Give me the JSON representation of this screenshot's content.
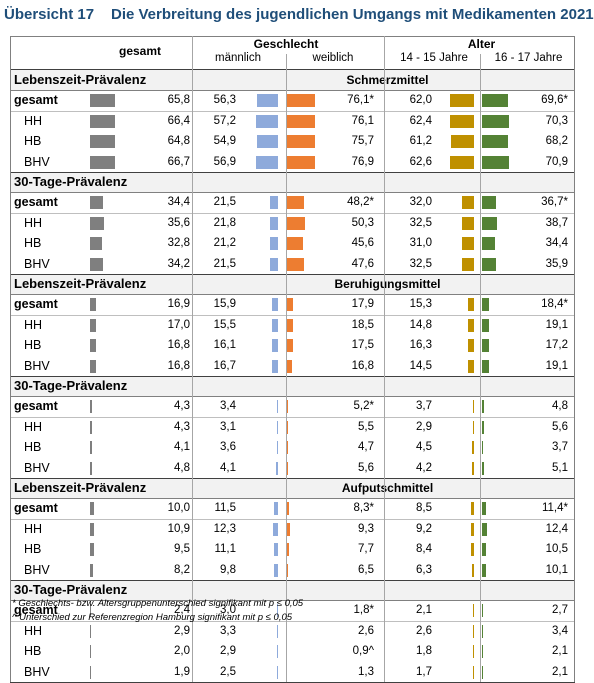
{
  "title": {
    "label": "Übersicht 17",
    "text": "Die Verbreitung des jugendlichen Umgangs mit Medikamenten 2021"
  },
  "headers": {
    "gesamt": "gesamt",
    "geschlecht": "Geschlecht",
    "maennlich": "männlich",
    "weiblich": "weiblich",
    "alter": "Alter",
    "age1": "14 - 15 Jahre",
    "age2": "16 - 17 Jahre"
  },
  "colors": {
    "gesamt": "#7f7f7f",
    "maennlich": "#8eaadb",
    "weiblich": "#ed7d31",
    "age1": "#bf9000",
    "age2": "#548235"
  },
  "footnotes": [
    "* Geschlechts- bzw. Altersgruppenunterschied signifikant mit p ≤ 0,05",
    "^ Unterschied zur Referenzregion Hamburg signifikant mit p ≤ 0,05"
  ],
  "chart_data": {
    "type": "table",
    "title": "Die Verbreitung des jugendlichen Umgangs mit Medikamenten 2021",
    "columns": [
      "gesamt",
      "männlich",
      "weiblich",
      "14 - 15 Jahre",
      "16 - 17 Jahre"
    ],
    "blocks": [
      {
        "medication": "Schmerzmittel",
        "sections": [
          {
            "title": "Lebenszeit-Prävalenz",
            "rows": [
              {
                "label": "gesamt",
                "values": [
                  "65,8",
                  "56,3",
                  "76,1*",
                  "62,0",
                  "69,6*"
                ],
                "num": [
                  65.8,
                  56.3,
                  76.1,
                  62.0,
                  69.6
                ]
              },
              {
                "label": "HH",
                "values": [
                  "66,4",
                  "57,2",
                  "76,1",
                  "62,4",
                  "70,3"
                ],
                "num": [
                  66.4,
                  57.2,
                  76.1,
                  62.4,
                  70.3
                ]
              },
              {
                "label": "HB",
                "values": [
                  "64,8",
                  "54,9",
                  "75,7",
                  "61,2",
                  "68,2"
                ],
                "num": [
                  64.8,
                  54.9,
                  75.7,
                  61.2,
                  68.2
                ]
              },
              {
                "label": "BHV",
                "values": [
                  "66,7",
                  "56,9",
                  "76,9",
                  "62,6",
                  "70,9"
                ],
                "num": [
                  66.7,
                  56.9,
                  76.9,
                  62.6,
                  70.9
                ]
              }
            ]
          },
          {
            "title": "30-Tage-Prävalenz",
            "rows": [
              {
                "label": "gesamt",
                "values": [
                  "34,4",
                  "21,5",
                  "48,2*",
                  "32,0",
                  "36,7*"
                ],
                "num": [
                  34.4,
                  21.5,
                  48.2,
                  32.0,
                  36.7
                ]
              },
              {
                "label": "HH",
                "values": [
                  "35,6",
                  "21,8",
                  "50,3",
                  "32,5",
                  "38,7"
                ],
                "num": [
                  35.6,
                  21.8,
                  50.3,
                  32.5,
                  38.7
                ]
              },
              {
                "label": "HB",
                "values": [
                  "32,8",
                  "21,2",
                  "45,6",
                  "31,0",
                  "34,4"
                ],
                "num": [
                  32.8,
                  21.2,
                  45.6,
                  31.0,
                  34.4
                ]
              },
              {
                "label": "BHV",
                "values": [
                  "34,2",
                  "21,5",
                  "47,6",
                  "32,5",
                  "35,9"
                ],
                "num": [
                  34.2,
                  21.5,
                  47.6,
                  32.5,
                  35.9
                ]
              }
            ]
          }
        ]
      },
      {
        "medication": "Beruhigungsmittel",
        "sections": [
          {
            "title": "Lebenszeit-Prävalenz",
            "rows": [
              {
                "label": "gesamt",
                "values": [
                  "16,9",
                  "15,9",
                  "17,9",
                  "15,3",
                  "18,4*"
                ],
                "num": [
                  16.9,
                  15.9,
                  17.9,
                  15.3,
                  18.4
                ]
              },
              {
                "label": "HH",
                "values": [
                  "17,0",
                  "15,5",
                  "18,5",
                  "14,8",
                  "19,1"
                ],
                "num": [
                  17.0,
                  15.5,
                  18.5,
                  14.8,
                  19.1
                ]
              },
              {
                "label": "HB",
                "values": [
                  "16,8",
                  "16,1",
                  "17,5",
                  "16,3",
                  "17,2"
                ],
                "num": [
                  16.8,
                  16.1,
                  17.5,
                  16.3,
                  17.2
                ]
              },
              {
                "label": "BHV",
                "values": [
                  "16,8",
                  "16,7",
                  "16,8",
                  "14,5",
                  "19,1"
                ],
                "num": [
                  16.8,
                  16.7,
                  16.8,
                  14.5,
                  19.1
                ]
              }
            ]
          },
          {
            "title": "30-Tage-Prävalenz",
            "rows": [
              {
                "label": "gesamt",
                "values": [
                  "4,3",
                  "3,4",
                  "5,2*",
                  "3,7",
                  "4,8"
                ],
                "num": [
                  4.3,
                  3.4,
                  5.2,
                  3.7,
                  4.8
                ]
              },
              {
                "label": "HH",
                "values": [
                  "4,3",
                  "3,1",
                  "5,5",
                  "2,9",
                  "5,6"
                ],
                "num": [
                  4.3,
                  3.1,
                  5.5,
                  2.9,
                  5.6
                ]
              },
              {
                "label": "HB",
                "values": [
                  "4,1",
                  "3,6",
                  "4,7",
                  "4,5",
                  "3,7"
                ],
                "num": [
                  4.1,
                  3.6,
                  4.7,
                  4.5,
                  3.7
                ]
              },
              {
                "label": "BHV",
                "values": [
                  "4,8",
                  "4,1",
                  "5,6",
                  "4,2",
                  "5,1"
                ],
                "num": [
                  4.8,
                  4.1,
                  5.6,
                  4.2,
                  5.1
                ]
              }
            ]
          }
        ]
      },
      {
        "medication": "Aufputschmittel",
        "sections": [
          {
            "title": "Lebenszeit-Prävalenz",
            "rows": [
              {
                "label": "gesamt",
                "values": [
                  "10,0",
                  "11,5",
                  "8,3*",
                  "8,5",
                  "11,4*"
                ],
                "num": [
                  10.0,
                  11.5,
                  8.3,
                  8.5,
                  11.4
                ]
              },
              {
                "label": "HH",
                "values": [
                  "10,9",
                  "12,3",
                  "9,3",
                  "9,2",
                  "12,4"
                ],
                "num": [
                  10.9,
                  12.3,
                  9.3,
                  9.2,
                  12.4
                ]
              },
              {
                "label": "HB",
                "values": [
                  "9,5",
                  "11,1",
                  "7,7",
                  "8,4",
                  "10,5"
                ],
                "num": [
                  9.5,
                  11.1,
                  7.7,
                  8.4,
                  10.5
                ]
              },
              {
                "label": "BHV",
                "values": [
                  "8,2",
                  "9,8",
                  "6,5",
                  "6,3",
                  "10,1"
                ],
                "num": [
                  8.2,
                  9.8,
                  6.5,
                  6.3,
                  10.1
                ]
              }
            ]
          },
          {
            "title": "30-Tage-Prävalenz",
            "rows": [
              {
                "label": "gesamt",
                "values": [
                  "2,4",
                  "3,0",
                  "1,8*",
                  "2,1",
                  "2,7"
                ],
                "num": [
                  2.4,
                  3.0,
                  1.8,
                  2.1,
                  2.7
                ]
              },
              {
                "label": "HH",
                "values": [
                  "2,9",
                  "3,3",
                  "2,6",
                  "2,6",
                  "3,4"
                ],
                "num": [
                  2.9,
                  3.3,
                  2.6,
                  2.6,
                  3.4
                ]
              },
              {
                "label": "HB",
                "values": [
                  "2,0",
                  "2,9",
                  "0,9^",
                  "1,8",
                  "2,1"
                ],
                "num": [
                  2.0,
                  2.9,
                  0.9,
                  1.8,
                  2.1
                ]
              },
              {
                "label": "BHV",
                "values": [
                  "1,9",
                  "2,5",
                  "1,3",
                  "1,7",
                  "2,1"
                ],
                "num": [
                  1.9,
                  2.5,
                  1.3,
                  1.7,
                  2.1
                ]
              }
            ]
          }
        ]
      }
    ]
  }
}
